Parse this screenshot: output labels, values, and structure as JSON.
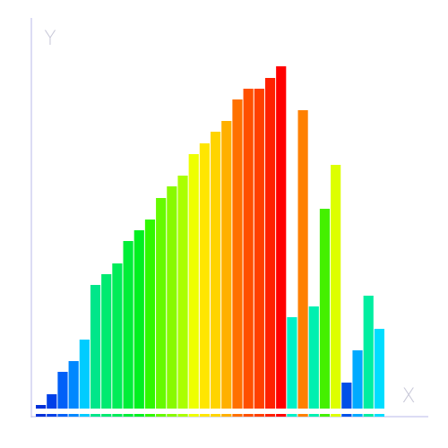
{
  "chart_data": {
    "type": "bar",
    "y_label": "Y",
    "x_label": "X",
    "categories": [
      null,
      null,
      null,
      null,
      null,
      null,
      null,
      null,
      null,
      null,
      null,
      null,
      null,
      null,
      null,
      null,
      null,
      null,
      null,
      null,
      null,
      null,
      null,
      null,
      null,
      null,
      null,
      null,
      null,
      null,
      null,
      null
    ],
    "values": [
      4,
      16,
      41,
      53,
      77,
      138,
      150,
      162,
      187,
      199,
      211,
      235,
      248,
      260,
      284,
      296,
      309,
      321,
      345,
      357,
      357,
      369,
      382,
      102,
      333,
      114,
      223,
      272,
      29,
      65,
      126,
      89
    ],
    "colors": [
      "#0030d8",
      "#0040e8",
      "#0060f8",
      "#0088ff",
      "#00ccff",
      "#00e68a",
      "#00ea70",
      "#00ec58",
      "#00ee38",
      "#00f020",
      "#30f800",
      "#66fa00",
      "#88fa00",
      "#aaff00",
      "#eeff00",
      "#ffe600",
      "#ffd400",
      "#ffb000",
      "#ff7000",
      "#ff5000",
      "#ff4000",
      "#ff2000",
      "#ff0000",
      "#00f0c8",
      "#ff8000",
      "#00f0b0",
      "#44f000",
      "#ddff00",
      "#0050e8",
      "#00aaff",
      "#00eea0",
      "#00ddff"
    ],
    "ylim": [
      0,
      436
    ]
  }
}
